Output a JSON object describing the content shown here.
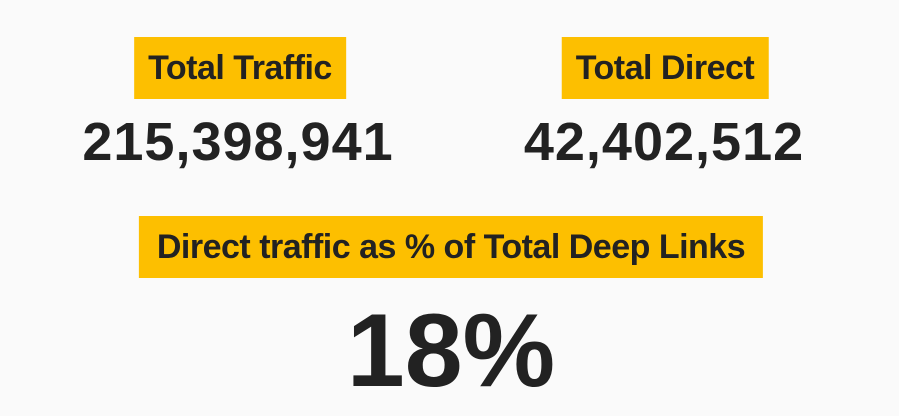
{
  "kpis": [
    {
      "label": "Total Traffic",
      "value": "215,398,941"
    },
    {
      "label": "Total Direct",
      "value": "42,402,512"
    }
  ],
  "ratio": {
    "label": "Direct traffic as % of Total Deep Links",
    "value": "18%"
  }
}
